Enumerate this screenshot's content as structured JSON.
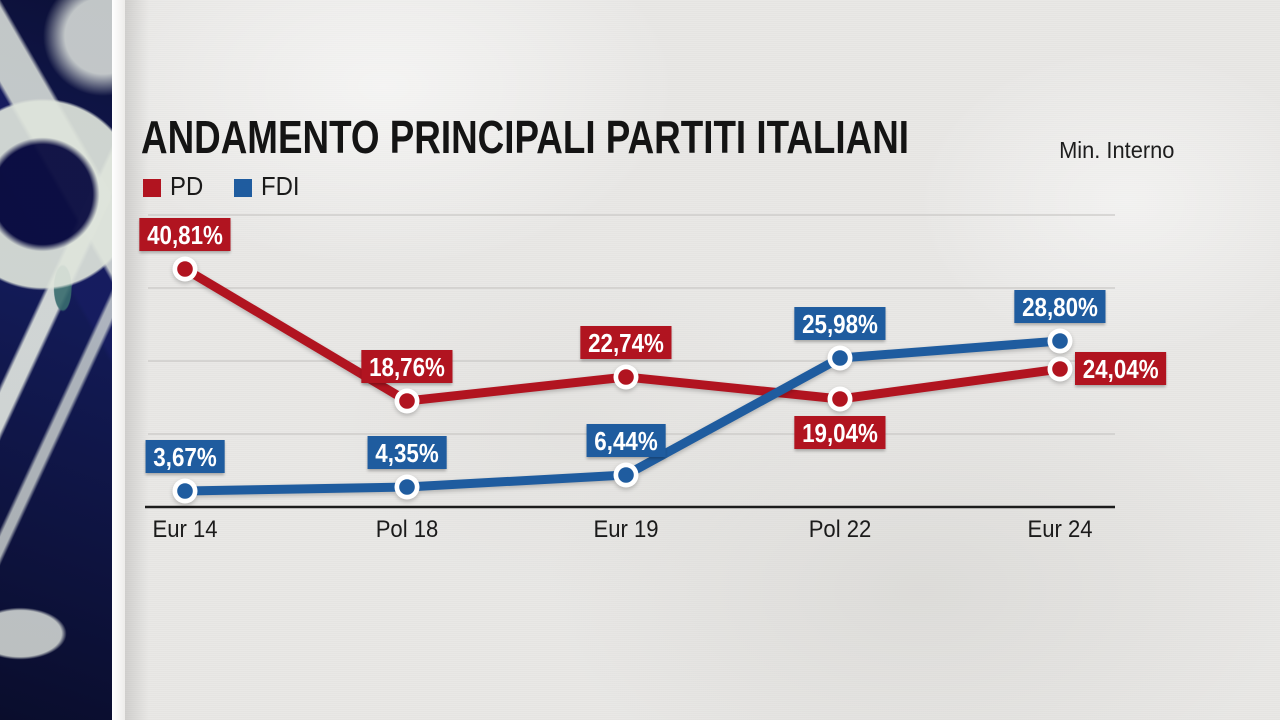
{
  "chart_data": {
    "type": "line",
    "title": "ANDAMENTO PRINCIPALI PARTITI ITALIANI",
    "source": "Min. Interno",
    "categories": [
      "Eur 14",
      "Pol 18",
      "Eur 19",
      "Pol 22",
      "Eur 24"
    ],
    "series": [
      {
        "name": "PD",
        "color": "#b11420",
        "values": [
          40.81,
          18.76,
          22.74,
          19.04,
          24.04
        ],
        "labels": [
          "40,81%",
          "18,76%",
          "22,74%",
          "19,04%",
          "24,04%"
        ]
      },
      {
        "name": "FDI",
        "color": "#1f5c9f",
        "values": [
          3.67,
          4.35,
          6.44,
          25.98,
          28.8
        ],
        "labels": [
          "3,67%",
          "4,35%",
          "6,44%",
          "25,98%",
          "28,80%"
        ]
      }
    ],
    "ylim": [
      0,
      50
    ],
    "grid": true,
    "legend_position": "top-left"
  },
  "colors": {
    "background": "#e9e8e6",
    "axis": "#1c1c1c",
    "gridline": "#c9c8c5",
    "title_text": "#141414",
    "sidebar_navy": "#0d1136"
  }
}
